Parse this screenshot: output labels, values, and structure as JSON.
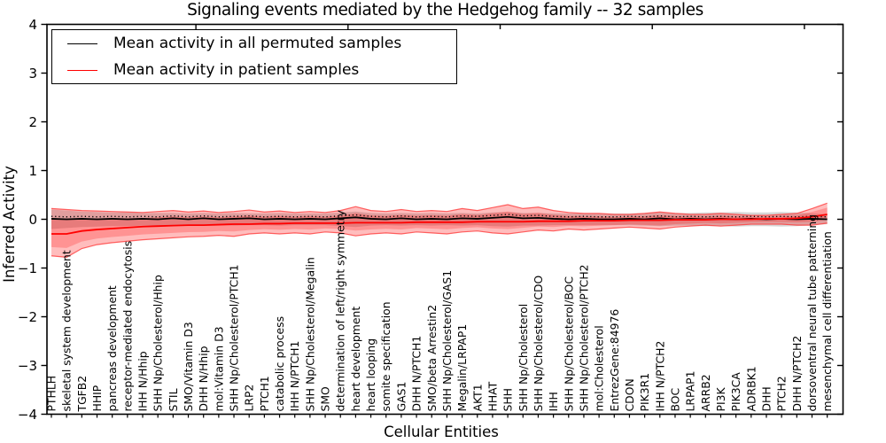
{
  "chart_data": {
    "type": "line",
    "title": "Signaling events mediated by the Hedgehog family -- 32 samples",
    "xlabel": "Cellular Entities",
    "ylabel": "Inferred Activity",
    "ylim": [
      -4,
      4
    ],
    "yticks": [
      4,
      3,
      2,
      1,
      0,
      -1,
      -2,
      -3,
      -4
    ],
    "grid": false,
    "legend_position": "upper left",
    "categories": [
      "PTHLH",
      "skeletal system development",
      "TGFB2",
      "HHIP",
      "pancreas development",
      "receptor-mediated endocytosis",
      "IHH N/Hhip",
      "SHH Np/Cholesterol/Hhip",
      "STIL",
      "SMO/Vitamin D3",
      "DHH N/Hhip",
      "mol:Vitamin D3",
      "SHH Np/Cholesterol/PTCH1",
      "LRP2",
      "PTCH1",
      "catabolic process",
      "IHH N/PTCH1",
      "SHH Np/Cholesterol/Megalin",
      "SMO",
      "determination of left/right symmetry",
      "heart development",
      "heart looping",
      "somite specification",
      "GAS1",
      "DHH N/PTCH1",
      "SMO/beta Arrestin2",
      "SHH Np/Cholesterol/GAS1",
      "Megalin/LRPAP1",
      "AKT1",
      "HHAT",
      "SHH",
      "SHH Np/Cholesterol",
      "SHH Np/Cholesterol/CDO",
      "IHH",
      "SHH Np/Cholesterol/BOC",
      "SHH Np/Cholesterol/PTCH2",
      "mol:Cholesterol",
      "EntrezGene:84976",
      "CDON",
      "PIK3R1",
      "IHH N/PTCH2",
      "BOC",
      "LRPAP1",
      "ARRB2",
      "PI3K",
      "PIK3CA",
      "ADRBK1",
      "DHH",
      "PTCH2",
      "DHH N/PTCH2",
      "dorsoventral neural tube patterning",
      "mesenchymal cell differentiation"
    ],
    "series": [
      {
        "name": "Mean activity in all permuted samples",
        "color": "#000000",
        "values": [
          0.01,
          0,
          0.01,
          0,
          0.01,
          0,
          0.01,
          0,
          0.02,
          0,
          0.02,
          0,
          0.01,
          0.02,
          0,
          0.01,
          0,
          0.01,
          0,
          0.02,
          0.04,
          0.01,
          0,
          0.02,
          0,
          0.01,
          0,
          0.02,
          0.01,
          0.03,
          0.05,
          0.02,
          0.03,
          0.01,
          0,
          0.01,
          0,
          0,
          0.01,
          0,
          0.02,
          0,
          0.01,
          0,
          0.01,
          0,
          0.01,
          0,
          0.01,
          0,
          0.01,
          0
        ]
      },
      {
        "name": "Mean activity in patient samples",
        "color": "#ff0000",
        "values": [
          -0.3,
          -0.3,
          -0.24,
          -0.21,
          -0.19,
          -0.17,
          -0.15,
          -0.14,
          -0.13,
          -0.12,
          -0.12,
          -0.11,
          -0.1,
          -0.1,
          -0.09,
          -0.09,
          -0.08,
          -0.08,
          -0.08,
          -0.08,
          -0.07,
          -0.07,
          -0.07,
          -0.07,
          -0.06,
          -0.06,
          -0.06,
          -0.06,
          -0.05,
          -0.05,
          -0.05,
          -0.05,
          -0.04,
          -0.04,
          -0.04,
          -0.03,
          -0.03,
          -0.03,
          -0.02,
          -0.02,
          -0.02,
          -0.01,
          -0.01,
          -0.01,
          0.0,
          0.0,
          0.0,
          0.01,
          0.01,
          0.02,
          0.05,
          0.1
        ]
      }
    ],
    "bands": [
      {
        "name": "permuted samples activity range",
        "color": "#808080",
        "upper": [
          0.2,
          0.18,
          0.16,
          0.15,
          0.14,
          0.14,
          0.13,
          0.13,
          0.13,
          0.12,
          0.13,
          0.12,
          0.13,
          0.12,
          0.12,
          0.13,
          0.12,
          0.12,
          0.12,
          0.14,
          0.16,
          0.13,
          0.12,
          0.13,
          0.12,
          0.13,
          0.12,
          0.13,
          0.12,
          0.14,
          0.15,
          0.13,
          0.13,
          0.12,
          0.12,
          0.12,
          0.12,
          0.12,
          0.12,
          0.13,
          0.14,
          0.13,
          0.13,
          0.14,
          0.14,
          0.15,
          0.14,
          0.14,
          0.15,
          0.14,
          0.12,
          0.1
        ],
        "lower": [
          -0.2,
          -0.18,
          -0.16,
          -0.15,
          -0.14,
          -0.14,
          -0.13,
          -0.13,
          -0.13,
          -0.12,
          -0.13,
          -0.12,
          -0.13,
          -0.12,
          -0.12,
          -0.13,
          -0.12,
          -0.12,
          -0.12,
          -0.14,
          -0.16,
          -0.13,
          -0.12,
          -0.13,
          -0.12,
          -0.13,
          -0.12,
          -0.13,
          -0.12,
          -0.14,
          -0.15,
          -0.13,
          -0.13,
          -0.12,
          -0.12,
          -0.12,
          -0.12,
          -0.12,
          -0.12,
          -0.13,
          -0.14,
          -0.13,
          -0.13,
          -0.14,
          -0.14,
          -0.15,
          -0.14,
          -0.14,
          -0.15,
          -0.14,
          -0.12,
          -0.1
        ]
      },
      {
        "name": "patient samples activity range",
        "color": "#ff0000",
        "upper": [
          0.22,
          0.2,
          0.18,
          0.17,
          0.16,
          0.15,
          0.14,
          0.16,
          0.18,
          0.15,
          0.17,
          0.14,
          0.16,
          0.19,
          0.15,
          0.17,
          0.14,
          0.16,
          0.14,
          0.18,
          0.26,
          0.18,
          0.16,
          0.2,
          0.16,
          0.18,
          0.16,
          0.22,
          0.18,
          0.24,
          0.3,
          0.22,
          0.25,
          0.18,
          0.14,
          0.12,
          0.12,
          0.1,
          0.1,
          0.12,
          0.15,
          0.12,
          0.1,
          0.1,
          0.12,
          0.1,
          0.08,
          0.08,
          0.1,
          0.12,
          0.22,
          0.33
        ],
        "lower": [
          -0.75,
          -0.78,
          -0.6,
          -0.52,
          -0.48,
          -0.45,
          -0.42,
          -0.4,
          -0.38,
          -0.36,
          -0.35,
          -0.33,
          -0.35,
          -0.3,
          -0.28,
          -0.3,
          -0.28,
          -0.3,
          -0.26,
          -0.28,
          -0.34,
          -0.3,
          -0.28,
          -0.3,
          -0.26,
          -0.28,
          -0.3,
          -0.26,
          -0.24,
          -0.28,
          -0.3,
          -0.26,
          -0.22,
          -0.24,
          -0.2,
          -0.22,
          -0.2,
          -0.18,
          -0.16,
          -0.18,
          -0.2,
          -0.16,
          -0.14,
          -0.12,
          -0.14,
          -0.12,
          -0.1,
          -0.1,
          -0.1,
          -0.12,
          -0.12,
          -0.08
        ]
      }
    ]
  }
}
